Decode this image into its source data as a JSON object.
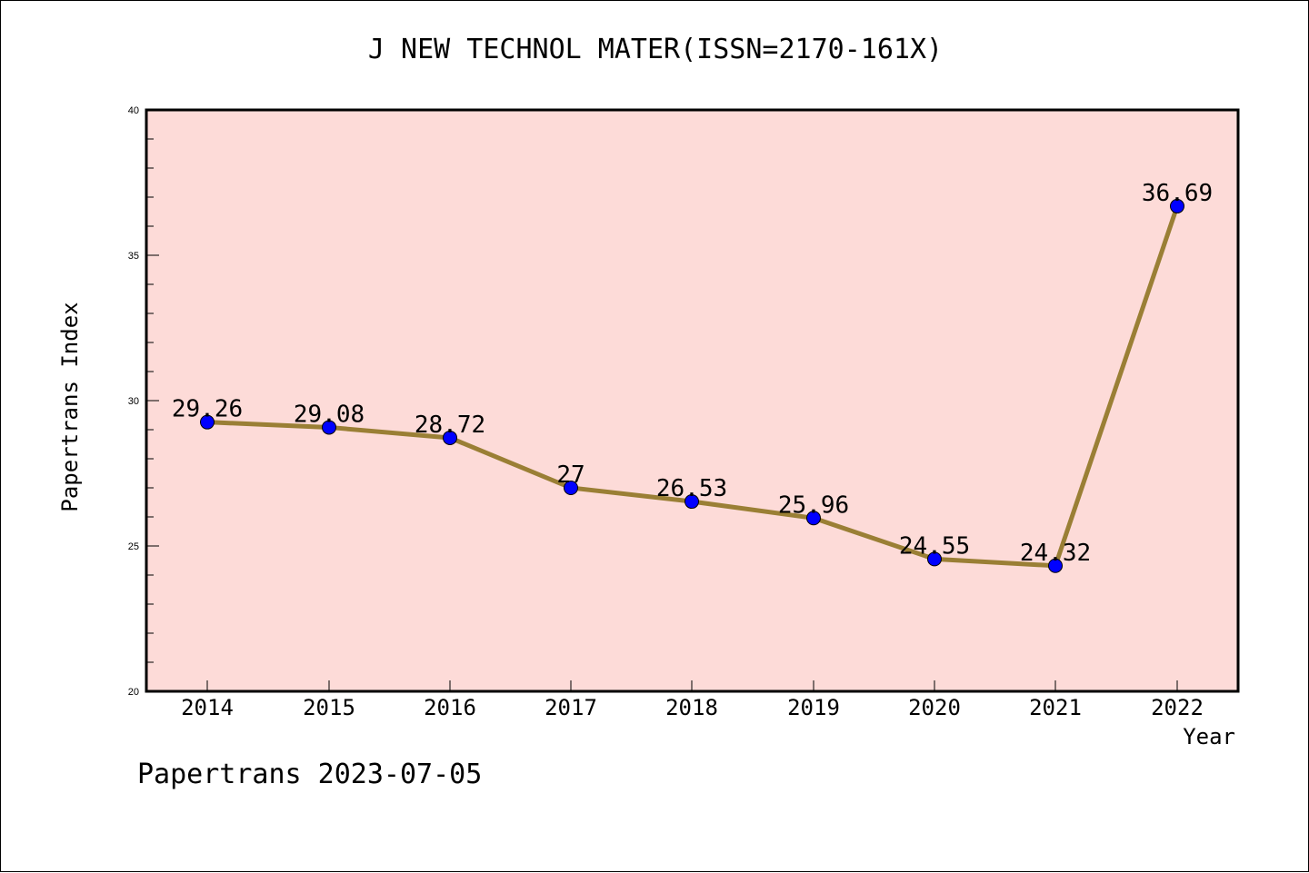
{
  "footer": "Papertrans 2023-07-05",
  "colors": {
    "plot_background": "#fddbd8",
    "line": "#9a7f35",
    "marker": "#0000ff",
    "axis": "#000000"
  },
  "chart_data": {
    "type": "line",
    "title": "J NEW TECHNOL MATER(ISSN=2170-161X)",
    "xlabel": "Year",
    "ylabel": "Papertrans Index",
    "categories": [
      "2014",
      "2015",
      "2016",
      "2017",
      "2018",
      "2019",
      "2020",
      "2021",
      "2022"
    ],
    "series": [
      {
        "values": [
          29.26,
          29.08,
          28.72,
          27,
          26.53,
          25.96,
          24.55,
          24.32,
          36.69
        ],
        "data_labels": [
          "29.26",
          "29.08",
          "28.72",
          "27",
          "26.53",
          "25.96",
          "24.55",
          "24.32",
          "36.69"
        ]
      }
    ],
    "ylim": [
      20,
      40
    ],
    "yticks": [
      20,
      25,
      30,
      35,
      40
    ],
    "ytick_labels": [
      "20",
      "25",
      "30",
      "35",
      "40"
    ],
    "y_minor_step": 1,
    "grid": false,
    "legend": "none"
  }
}
